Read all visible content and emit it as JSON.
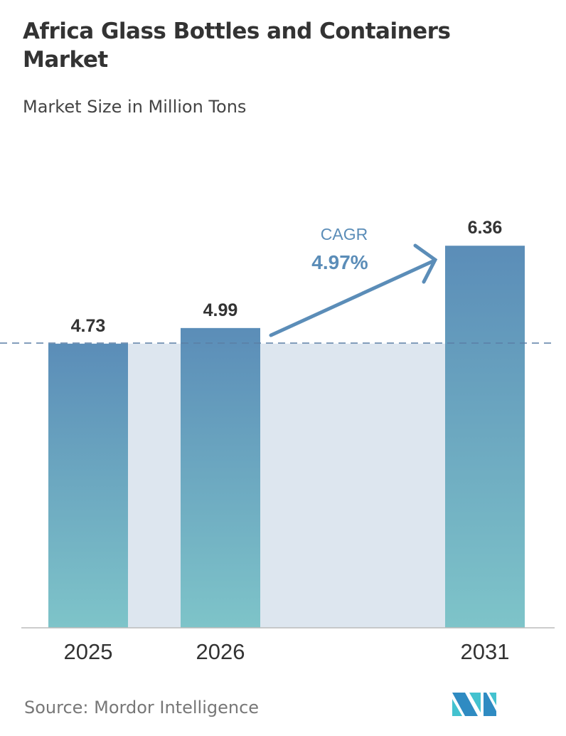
{
  "chart_data": {
    "type": "bar",
    "title": "Africa Glass Bottles and Containers Market",
    "subtitle": "Market Size in Million Tons",
    "categories": [
      "2025",
      "2026",
      "2031"
    ],
    "values": [
      4.73,
      4.99,
      6.36
    ],
    "data_labels": [
      "4.73",
      "4.99",
      "6.36"
    ],
    "ylim": [
      0,
      7
    ],
    "grid": false,
    "annotation": {
      "label": "CAGR",
      "value": "4.97%"
    },
    "colors": {
      "bar_top": "#5b8db8",
      "bar_bottom": "#7ec4c9",
      "band": "#dde6ef",
      "annotation": "#5b8db8"
    }
  },
  "source": "Source:  Mordor Intelligence",
  "logo": "Mordor Intelligence logo"
}
